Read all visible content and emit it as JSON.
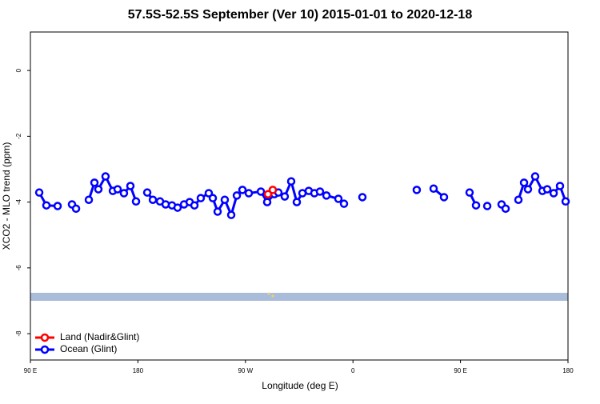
{
  "chart_data": {
    "type": "line",
    "title": "57.5S-52.5S September (Ver 10)   2015-01-01 to 2020-12-18",
    "x_label": "Longitude (deg E)",
    "y_label": "XCO2 - MLO trend (ppm)",
    "xlim": [
      90,
      540
    ],
    "xticks": [
      {
        "value": 90,
        "label": "90 E"
      },
      {
        "value": 180,
        "label": "180"
      },
      {
        "value": 270,
        "label": "90 W"
      },
      {
        "value": 360,
        "label": "0"
      },
      {
        "value": 450,
        "label": "90 E"
      },
      {
        "value": 540,
        "label": "180"
      }
    ],
    "ylim": [
      -8.8,
      1.17
    ],
    "yticks": [
      0,
      -2,
      -4,
      -6,
      -8
    ],
    "legend": "bottom-left",
    "series": [
      {
        "name": "Land (Nadir&Glint)",
        "color": "#ff0000",
        "x": [
          288.9,
          292.9
        ],
        "values": [
          -3.76,
          -3.63
        ]
      },
      {
        "name": "Ocean (Glint)",
        "color": "#0000ff",
        "x": [
          97.4,
          103.4,
          112.8,
          null,
          124.8,
          128.2,
          null,
          138.9,
          143.6,
          146.9,
          152.9,
          159.0,
          163.0,
          168.3,
          173.7,
          178.4,
          null,
          187.8,
          192.5,
          198.5,
          203.2,
          208.5,
          213.2,
          218.6,
          223.3,
          227.3,
          232.6,
          239.3,
          242.7,
          246.7,
          252.7,
          258.1,
          262.8,
          267.5,
          272.8,
          282.9,
          288.2,
          294.2,
          297.6,
          302.9,
          308.3,
          313.0,
          317.7,
          323.0,
          327.7,
          332.4,
          337.8,
          347.8,
          352.5,
          null,
          367.9,
          null,
          413.4,
          null,
          427.5,
          436.2,
          null,
          457.6,
          463.0,
          null,
          472.4,
          null,
          484.4,
          487.8,
          null,
          498.5,
          503.2,
          506.5,
          512.5,
          518.6,
          522.6,
          528.0,
          533.3,
          538.0
        ],
        "values": [
          -3.71,
          -4.1,
          -4.12,
          null,
          -4.07,
          -4.2,
          null,
          -3.93,
          -3.41,
          -3.61,
          -3.22,
          -3.66,
          -3.61,
          -3.73,
          -3.51,
          -3.98,
          null,
          -3.71,
          -3.93,
          -3.98,
          -4.07,
          -4.1,
          -4.17,
          -4.07,
          -4.0,
          -4.1,
          -3.88,
          -3.73,
          -3.88,
          -4.29,
          -3.93,
          -4.39,
          -3.8,
          -3.63,
          -3.73,
          -3.68,
          -4.0,
          -3.76,
          -3.71,
          -3.83,
          -3.37,
          -4.0,
          -3.73,
          -3.66,
          -3.73,
          -3.68,
          -3.8,
          -3.9,
          -4.05,
          null,
          -3.85,
          null,
          -3.63,
          null,
          -3.59,
          -3.85,
          null,
          -3.71,
          -4.1,
          null,
          -4.12,
          null,
          -4.07,
          -4.2,
          null,
          -3.93,
          -3.41,
          -3.61,
          -3.22,
          -3.66,
          -3.61,
          -3.73,
          -3.51,
          -3.98
        ]
      }
    ]
  }
}
